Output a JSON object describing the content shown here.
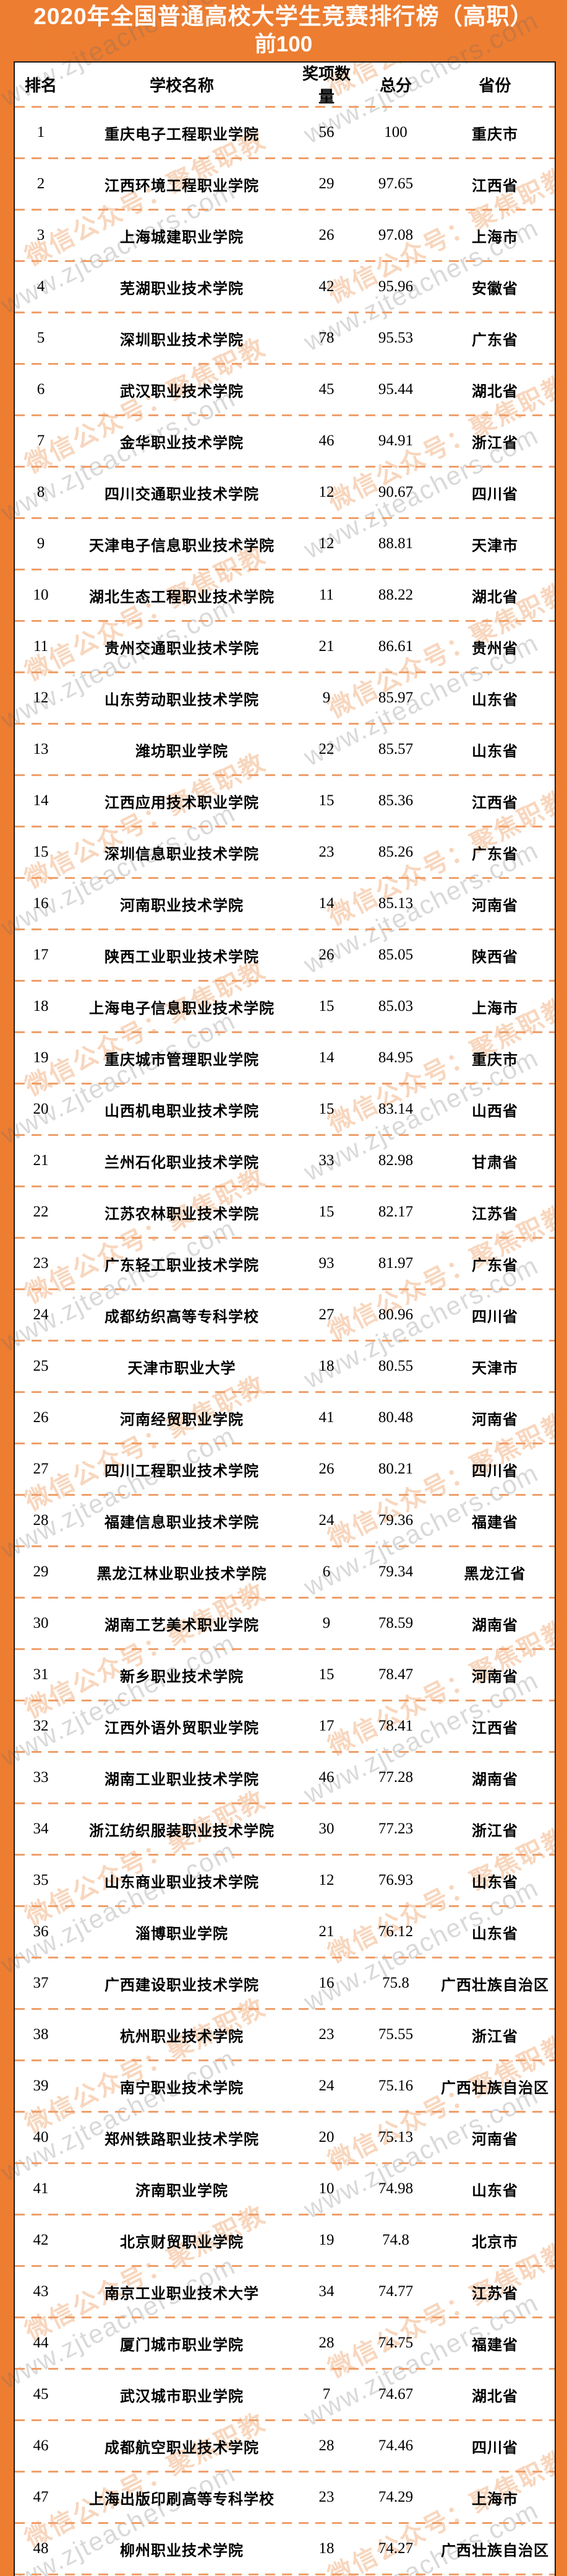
{
  "title": {
    "line1": "2020年全国普通高校大学生竞赛排行榜（高职）",
    "line2": "前100"
  },
  "columns": [
    "排名",
    "学校名称",
    "奖项数量",
    "总分",
    "省份"
  ],
  "watermark": {
    "line1": "微信公众号：聚焦职教",
    "line2": "www.zjteachers.com"
  },
  "colors": {
    "accent": "#ED7D31",
    "dash_line": "#EF9F6A",
    "table_border": "#1B1B1B",
    "title_text": "#FFFFFF",
    "body_text": "#000000"
  },
  "rows": [
    {
      "rank": "1",
      "school": "重庆电子工程职业学院",
      "awards": "56",
      "score": "100",
      "province": "重庆市"
    },
    {
      "rank": "2",
      "school": "江西环境工程职业学院",
      "awards": "29",
      "score": "97.65",
      "province": "江西省"
    },
    {
      "rank": "3",
      "school": "上海城建职业学院",
      "awards": "26",
      "score": "97.08",
      "province": "上海市"
    },
    {
      "rank": "4",
      "school": "芜湖职业技术学院",
      "awards": "42",
      "score": "95.96",
      "province": "安徽省"
    },
    {
      "rank": "5",
      "school": "深圳职业技术学院",
      "awards": "78",
      "score": "95.53",
      "province": "广东省"
    },
    {
      "rank": "6",
      "school": "武汉职业技术学院",
      "awards": "45",
      "score": "95.44",
      "province": "湖北省"
    },
    {
      "rank": "7",
      "school": "金华职业技术学院",
      "awards": "46",
      "score": "94.91",
      "province": "浙江省"
    },
    {
      "rank": "8",
      "school": "四川交通职业技术学院",
      "awards": "12",
      "score": "90.67",
      "province": "四川省"
    },
    {
      "rank": "9",
      "school": "天津电子信息职业技术学院",
      "awards": "12",
      "score": "88.81",
      "province": "天津市"
    },
    {
      "rank": "10",
      "school": "湖北生态工程职业技术学院",
      "awards": "11",
      "score": "88.22",
      "province": "湖北省"
    },
    {
      "rank": "11",
      "school": "贵州交通职业技术学院",
      "awards": "21",
      "score": "86.61",
      "province": "贵州省"
    },
    {
      "rank": "12",
      "school": "山东劳动职业技术学院",
      "awards": "9",
      "score": "85.97",
      "province": "山东省"
    },
    {
      "rank": "13",
      "school": "潍坊职业学院",
      "awards": "22",
      "score": "85.57",
      "province": "山东省"
    },
    {
      "rank": "14",
      "school": "江西应用技术职业学院",
      "awards": "15",
      "score": "85.36",
      "province": "江西省"
    },
    {
      "rank": "15",
      "school": "深圳信息职业技术学院",
      "awards": "23",
      "score": "85.26",
      "province": "广东省"
    },
    {
      "rank": "16",
      "school": "河南职业技术学院",
      "awards": "14",
      "score": "85.13",
      "province": "河南省"
    },
    {
      "rank": "17",
      "school": "陕西工业职业技术学院",
      "awards": "26",
      "score": "85.05",
      "province": "陕西省"
    },
    {
      "rank": "18",
      "school": "上海电子信息职业技术学院",
      "awards": "15",
      "score": "85.03",
      "province": "上海市"
    },
    {
      "rank": "19",
      "school": "重庆城市管理职业学院",
      "awards": "14",
      "score": "84.95",
      "province": "重庆市"
    },
    {
      "rank": "20",
      "school": "山西机电职业技术学院",
      "awards": "15",
      "score": "83.14",
      "province": "山西省"
    },
    {
      "rank": "21",
      "school": "兰州石化职业技术学院",
      "awards": "33",
      "score": "82.98",
      "province": "甘肃省"
    },
    {
      "rank": "22",
      "school": "江苏农林职业技术学院",
      "awards": "15",
      "score": "82.17",
      "province": "江苏省"
    },
    {
      "rank": "23",
      "school": "广东轻工职业技术学院",
      "awards": "93",
      "score": "81.97",
      "province": "广东省"
    },
    {
      "rank": "24",
      "school": "成都纺织高等专科学校",
      "awards": "27",
      "score": "80.96",
      "province": "四川省"
    },
    {
      "rank": "25",
      "school": "天津市职业大学",
      "awards": "18",
      "score": "80.55",
      "province": "天津市"
    },
    {
      "rank": "26",
      "school": "河南经贸职业学院",
      "awards": "41",
      "score": "80.48",
      "province": "河南省"
    },
    {
      "rank": "27",
      "school": "四川工程职业技术学院",
      "awards": "26",
      "score": "80.21",
      "province": "四川省"
    },
    {
      "rank": "28",
      "school": "福建信息职业技术学院",
      "awards": "24",
      "score": "79.36",
      "province": "福建省"
    },
    {
      "rank": "29",
      "school": "黑龙江林业职业技术学院",
      "awards": "6",
      "score": "79.34",
      "province": "黑龙江省"
    },
    {
      "rank": "30",
      "school": "湖南工艺美术职业学院",
      "awards": "9",
      "score": "78.59",
      "province": "湖南省"
    },
    {
      "rank": "31",
      "school": "新乡职业技术学院",
      "awards": "15",
      "score": "78.47",
      "province": "河南省"
    },
    {
      "rank": "32",
      "school": "江西外语外贸职业学院",
      "awards": "17",
      "score": "78.41",
      "province": "江西省"
    },
    {
      "rank": "33",
      "school": "湖南工业职业技术学院",
      "awards": "46",
      "score": "77.28",
      "province": "湖南省"
    },
    {
      "rank": "34",
      "school": "浙江纺织服装职业技术学院",
      "awards": "30",
      "score": "77.23",
      "province": "浙江省"
    },
    {
      "rank": "35",
      "school": "山东商业职业技术学院",
      "awards": "12",
      "score": "76.93",
      "province": "山东省"
    },
    {
      "rank": "36",
      "school": "淄博职业学院",
      "awards": "21",
      "score": "76.12",
      "province": "山东省"
    },
    {
      "rank": "37",
      "school": "广西建设职业技术学院",
      "awards": "16",
      "score": "75.8",
      "province": "广西壮族自治区"
    },
    {
      "rank": "38",
      "school": "杭州职业技术学院",
      "awards": "23",
      "score": "75.55",
      "province": "浙江省"
    },
    {
      "rank": "39",
      "school": "南宁职业技术学院",
      "awards": "24",
      "score": "75.16",
      "province": "广西壮族自治区"
    },
    {
      "rank": "40",
      "school": "郑州铁路职业技术学院",
      "awards": "20",
      "score": "75.13",
      "province": "河南省"
    },
    {
      "rank": "41",
      "school": "济南职业学院",
      "awards": "10",
      "score": "74.98",
      "province": "山东省"
    },
    {
      "rank": "42",
      "school": "北京财贸职业学院",
      "awards": "19",
      "score": "74.8",
      "province": "北京市"
    },
    {
      "rank": "43",
      "school": "南京工业职业技术大学",
      "awards": "34",
      "score": "74.77",
      "province": "江苏省"
    },
    {
      "rank": "44",
      "school": "厦门城市职业学院",
      "awards": "28",
      "score": "74.75",
      "province": "福建省"
    },
    {
      "rank": "45",
      "school": "武汉城市职业学院",
      "awards": "7",
      "score": "74.67",
      "province": "湖北省"
    },
    {
      "rank": "46",
      "school": "成都航空职业技术学院",
      "awards": "28",
      "score": "74.46",
      "province": "四川省"
    },
    {
      "rank": "47",
      "school": "上海出版印刷高等专科学校",
      "awards": "23",
      "score": "74.29",
      "province": "上海市"
    },
    {
      "rank": "48",
      "school": "柳州职业技术学院",
      "awards": "18",
      "score": "74.27",
      "province": "广西壮族自治区"
    }
  ]
}
